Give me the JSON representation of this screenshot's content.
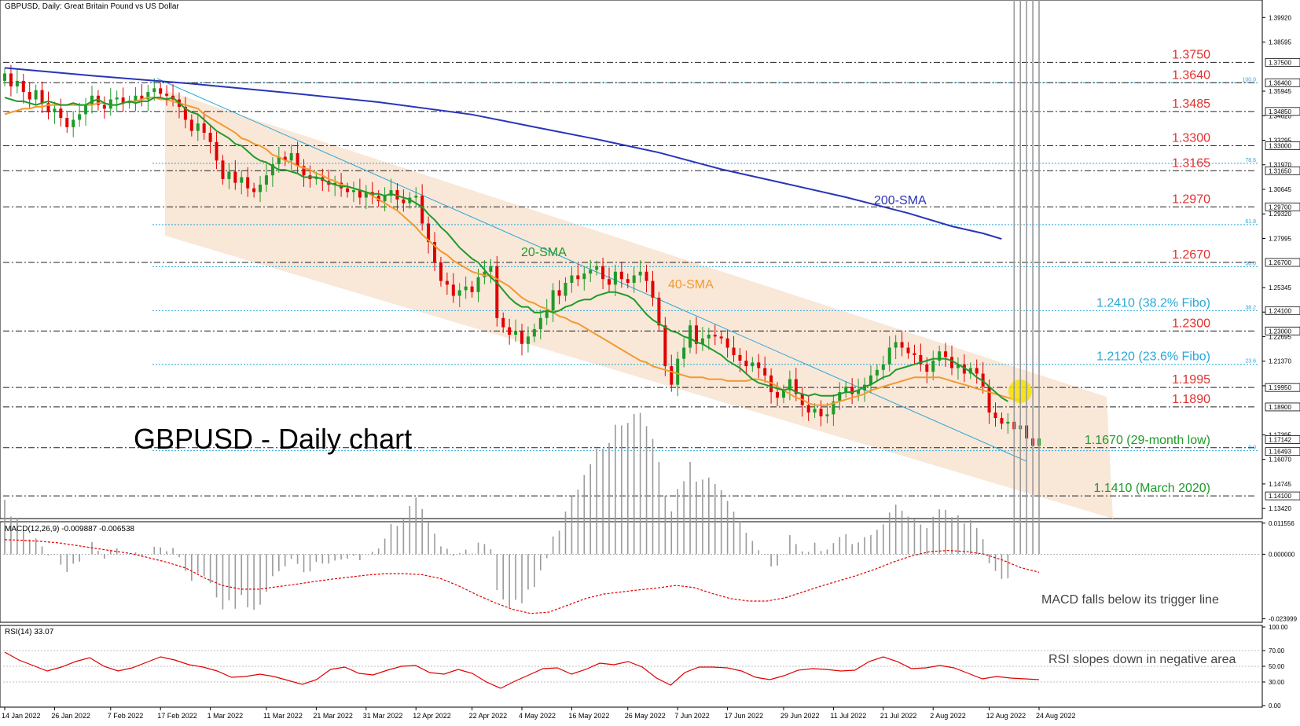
{
  "header": {
    "main_title": "GBPUSD, Daily:  Great Britain Pound vs US Dollar",
    "macd_title": "MACD(12,26,9) -0.009887 -0.006538",
    "rsi_title": "RSI(14) 33.07"
  },
  "overlay": {
    "big_title": "GBPUSD - Daily chart",
    "label_200sma": "200-SMA",
    "label_20sma": "20-SMA",
    "label_40sma": "40-SMA",
    "macd_note": "MACD falls below its trigger line",
    "rsi_note": "RSI slopes down in negative area"
  },
  "colors": {
    "bull": "#1f9a2a",
    "bear": "#e00000",
    "sma20": "#1f9a2a",
    "sma40": "#f29a2e",
    "sma200": "#2a34b8",
    "channel": "#f9e7d8",
    "fibo": "#29a8d8",
    "level_text": "#e03030",
    "rsi": "#e00000",
    "macd_signal": "#e00000",
    "highlight": "#f5e000"
  },
  "chart_data": {
    "type": "candlestick",
    "price_axis": {
      "ylim": [
        1.1296,
        1.4078
      ],
      "ticks": [
        "1.39920",
        "1.38595",
        "1.35945",
        "1.34620",
        "1.33295",
        "1.31970",
        "1.30645",
        "1.29320",
        "1.27995",
        "1.25345",
        "1.24020",
        "1.22695",
        "1.21370",
        "1.20045",
        "1.17395",
        "1.16070",
        "1.14745",
        "1.13420"
      ],
      "boxed": [
        "1.37500",
        "1.36400",
        "1.34850",
        "1.33000",
        "1.31650",
        "1.29700",
        "1.26700",
        "1.24100",
        "1.23000",
        "1.19950",
        "1.18900",
        "1.17142",
        "1.16493",
        "1.14100"
      ]
    },
    "x_labels": [
      "14 Jan 2022",
      "26 Jan 2022",
      "7 Feb 2022",
      "17 Feb 2022",
      "1 Mar 2022",
      "11 Mar 2022",
      "21 Mar 2022",
      "31 Mar 2022",
      "12 Apr 2022",
      "22 Apr 2022",
      "4 May 2022",
      "16 May 2022",
      "26 May 2022",
      "7 Jun 2022",
      "17 Jun 2022",
      "29 Jun 2022",
      "11 Jul 2022",
      "21 Jul 2022",
      "2 Aug 2022",
      "12 Aug 2022",
      "24 Aug 2022"
    ],
    "levels": [
      {
        "value": 1.375,
        "label": "1.3750",
        "type": "resistance"
      },
      {
        "value": 1.364,
        "label": "1.3640",
        "type": "resistance"
      },
      {
        "value": 1.3485,
        "label": "1.3485",
        "type": "resistance"
      },
      {
        "value": 1.33,
        "label": "1.3300",
        "type": "resistance"
      },
      {
        "value": 1.3165,
        "label": "1.3165",
        "type": "resistance"
      },
      {
        "value": 1.297,
        "label": "1.2970",
        "type": "resistance"
      },
      {
        "value": 1.267,
        "label": "1.2670",
        "type": "resistance"
      },
      {
        "value": 1.241,
        "label": "1.2410 (38.2% Fibo)",
        "type": "fibo"
      },
      {
        "value": 1.23,
        "label": "1.2300",
        "type": "resistance"
      },
      {
        "value": 1.212,
        "label": "1.2120 (23.6% Fibo)",
        "type": "fibo"
      },
      {
        "value": 1.1995,
        "label": "1.1995",
        "type": "resistance"
      },
      {
        "value": 1.189,
        "label": "1.1890",
        "type": "resistance"
      },
      {
        "value": 1.167,
        "label": "1.1670 (29-month low)",
        "type": "support"
      },
      {
        "value": 1.141,
        "label": "1.1410 (March 2020)",
        "type": "support"
      }
    ],
    "fibo_lines": [
      {
        "value": 1.364,
        "ratio": "100.0"
      },
      {
        "value": 1.3205,
        "ratio": "78.6"
      },
      {
        "value": 1.2874,
        "ratio": "61.8"
      },
      {
        "value": 1.2647,
        "ratio": "50.0"
      },
      {
        "value": 1.241,
        "ratio": "38.2"
      },
      {
        "value": 1.212,
        "ratio": "23.6"
      },
      {
        "value": 1.1654,
        "ratio": "0.0"
      }
    ],
    "closes": [
      1.369,
      1.362,
      1.365,
      1.359,
      1.355,
      1.36,
      1.353,
      1.348,
      1.35,
      1.345,
      1.34,
      1.344,
      1.347,
      1.352,
      1.357,
      1.352,
      1.35,
      1.355,
      1.356,
      1.353,
      1.354,
      1.357,
      1.355,
      1.359,
      1.361,
      1.358,
      1.357,
      1.355,
      1.351,
      1.344,
      1.338,
      1.342,
      1.337,
      1.332,
      1.322,
      1.312,
      1.316,
      1.31,
      1.313,
      1.307,
      1.305,
      1.309,
      1.314,
      1.32,
      1.324,
      1.322,
      1.326,
      1.319,
      1.314,
      1.312,
      1.313,
      1.311,
      1.309,
      1.31,
      1.307,
      1.305,
      1.306,
      1.302,
      1.305,
      1.303,
      1.3,
      1.303,
      1.306,
      1.301,
      1.299,
      1.302,
      1.303,
      1.288,
      1.278,
      1.267,
      1.257,
      1.255,
      1.249,
      1.252,
      1.254,
      1.251,
      1.259,
      1.262,
      1.265,
      1.237,
      1.232,
      1.228,
      1.23,
      1.223,
      1.227,
      1.231,
      1.237,
      1.241,
      1.252,
      1.249,
      1.256,
      1.26,
      1.258,
      1.261,
      1.263,
      1.265,
      1.258,
      1.255,
      1.262,
      1.258,
      1.256,
      1.26,
      1.262,
      1.257,
      1.248,
      1.233,
      1.211,
      1.201,
      1.215,
      1.221,
      1.233,
      1.223,
      1.226,
      1.228,
      1.227,
      1.226,
      1.221,
      1.217,
      1.214,
      1.211,
      1.213,
      1.21,
      1.206,
      1.197,
      1.194,
      1.198,
      1.204,
      1.196,
      1.19,
      1.186,
      1.188,
      1.184,
      1.185,
      1.192,
      1.197,
      1.2,
      1.196,
      1.198,
      1.201,
      1.206,
      1.209,
      1.212,
      1.221,
      1.224,
      1.221,
      1.218,
      1.217,
      1.212,
      1.208,
      1.214,
      1.219,
      1.216,
      1.21,
      1.212,
      1.207,
      1.21,
      1.207,
      1.2,
      1.186,
      1.183,
      1.18,
      1.181,
      1.177,
      1.179,
      1.172,
      1.168,
      1.172
    ],
    "sma20": [
      1.356,
      1.355,
      1.354,
      1.354,
      1.353,
      1.352,
      1.353,
      1.354,
      1.353,
      1.352,
      1.352,
      1.353,
      1.352,
      1.352,
      1.354,
      1.355,
      1.353,
      1.352,
      1.352,
      1.353,
      1.354,
      1.353,
      1.354,
      1.354,
      1.356,
      1.356,
      1.355,
      1.356,
      1.353,
      1.35,
      1.348,
      1.347,
      1.344,
      1.341,
      1.338,
      1.336,
      1.334,
      1.331,
      1.33,
      1.327,
      1.324,
      1.322,
      1.321,
      1.319,
      1.317,
      1.317,
      1.316,
      1.315,
      1.313,
      1.313,
      1.313,
      1.312,
      1.31,
      1.309,
      1.308,
      1.308,
      1.307,
      1.306,
      1.305,
      1.304,
      1.304,
      1.303,
      1.304,
      1.303,
      1.302,
      1.301,
      1.299,
      1.297,
      1.293,
      1.29,
      1.286,
      1.283,
      1.279,
      1.275,
      1.272,
      1.269,
      1.267,
      1.263,
      1.259,
      1.256,
      1.252,
      1.248,
      1.245,
      1.243,
      1.243,
      1.24,
      1.24,
      1.241,
      1.24,
      1.241,
      1.243,
      1.244,
      1.246,
      1.247,
      1.247,
      1.249,
      1.25,
      1.251,
      1.251,
      1.25,
      1.249,
      1.247,
      1.243,
      1.239,
      1.236,
      1.234,
      1.232,
      1.23,
      1.229,
      1.227,
      1.226,
      1.224,
      1.223,
      1.221,
      1.219,
      1.217,
      1.214,
      1.212,
      1.21,
      1.207,
      1.204,
      1.202,
      1.201,
      1.2,
      1.199,
      1.198,
      1.199,
      1.197,
      1.196,
      1.195,
      1.196,
      1.195,
      1.195,
      1.195,
      1.196,
      1.197,
      1.197,
      1.198,
      1.2,
      1.201,
      1.203,
      1.205,
      1.206,
      1.209,
      1.21,
      1.211,
      1.212,
      1.213,
      1.214,
      1.215,
      1.215,
      1.215,
      1.214,
      1.212,
      1.21,
      1.208,
      1.205,
      1.203,
      1.2,
      1.197,
      1.194,
      1.192
    ],
    "sma40": [
      1.347,
      1.348,
      1.349,
      1.35,
      1.35,
      1.351,
      1.351,
      1.352,
      1.352,
      1.352,
      1.352,
      1.352,
      1.352,
      1.352,
      1.352,
      1.353,
      1.353,
      1.352,
      1.352,
      1.353,
      1.354,
      1.354,
      1.355,
      1.356,
      1.356,
      1.355,
      1.355,
      1.354,
      1.353,
      1.352,
      1.351,
      1.35,
      1.347,
      1.345,
      1.343,
      1.341,
      1.339,
      1.337,
      1.334,
      1.333,
      1.331,
      1.33,
      1.328,
      1.325,
      1.324,
      1.322,
      1.321,
      1.319,
      1.318,
      1.317,
      1.315,
      1.314,
      1.312,
      1.311,
      1.309,
      1.308,
      1.307,
      1.306,
      1.305,
      1.303,
      1.301,
      1.299,
      1.297,
      1.295,
      1.292,
      1.289,
      1.286,
      1.282,
      1.279,
      1.276,
      1.273,
      1.271,
      1.268,
      1.266,
      1.264,
      1.262,
      1.261,
      1.26,
      1.26,
      1.258,
      1.256,
      1.254,
      1.251,
      1.248,
      1.246,
      1.245,
      1.243,
      1.242,
      1.24,
      1.238,
      1.237,
      1.235,
      1.234,
      1.232,
      1.23,
      1.228,
      1.226,
      1.224,
      1.222,
      1.22,
      1.218,
      1.216,
      1.214,
      1.213,
      1.211,
      1.21,
      1.209,
      1.208,
      1.207,
      1.206,
      1.205,
      1.205,
      1.205,
      1.204,
      1.204,
      1.204,
      1.203,
      1.203,
      1.203,
      1.203,
      1.204,
      1.204,
      1.203,
      1.202,
      1.2,
      1.198,
      1.196,
      1.194,
      1.193,
      1.191,
      1.19,
      1.19,
      1.19,
      1.191,
      1.192,
      1.193,
      1.194,
      1.195,
      1.196,
      1.198,
      1.199,
      1.2,
      1.201,
      1.202,
      1.203,
      1.204,
      1.205,
      1.205,
      1.205,
      1.205,
      1.205,
      1.204,
      1.203,
      1.202,
      1.201,
      1.2,
      1.199,
      1.198,
      1.197,
      1.196,
      1.195,
      1.194,
      1.193,
      1.193
    ],
    "sma200": [
      1.372,
      1.3675,
      1.3635,
      1.3587,
      1.3535,
      1.3468,
      1.3401,
      1.3335,
      1.3263,
      1.3173,
      1.3098,
      1.3022,
      1.2936,
      1.2865,
      1.2827,
      1.2797
    ],
    "sma200_index": [
      0,
      15,
      30,
      45,
      60,
      75,
      85,
      95,
      105,
      115,
      125,
      135,
      145,
      152,
      157,
      160
    ],
    "macd": {
      "ylim": [
        -0.0247,
        0.0115
      ],
      "ticks": [
        "0.011556",
        "0.000000",
        "-0.023999"
      ],
      "signal": [
        0.0054,
        0.0052,
        0.0048,
        0.0042,
        0.0032,
        0.0022,
        0.0012,
        0.0002,
        -0.0014,
        -0.0031,
        -0.0052,
        -0.0088,
        -0.0116,
        -0.013,
        -0.013,
        -0.0121,
        -0.0112,
        -0.0102,
        -0.0093,
        -0.0085,
        -0.0077,
        -0.0072,
        -0.0072,
        -0.0076,
        -0.009,
        -0.0117,
        -0.015,
        -0.018,
        -0.0205,
        -0.022,
        -0.0215,
        -0.019,
        -0.0165,
        -0.0148,
        -0.014,
        -0.0132,
        -0.0125,
        -0.0116,
        -0.0124,
        -0.0146,
        -0.0165,
        -0.0174,
        -0.0174,
        -0.0162,
        -0.014,
        -0.0118,
        -0.0098,
        -0.0078,
        -0.0055,
        -0.0028,
        -0.0006,
        0.001,
        0.0014,
        0.001,
        0.0,
        -0.0022,
        -0.005,
        -0.0067
      ]
    },
    "rsi": {
      "ylim": [
        0,
        100
      ],
      "ticks": [
        "100.00",
        "70.00",
        "50.00",
        "30.00",
        "0.00"
      ],
      "values": [
        68,
        58,
        51,
        44,
        49,
        56,
        61,
        50,
        44,
        48,
        55,
        62,
        58,
        52,
        49,
        44,
        36,
        37,
        40,
        37,
        32,
        27,
        33,
        46,
        49,
        41,
        39,
        45,
        50,
        51,
        42,
        40,
        46,
        41,
        30,
        22,
        31,
        39,
        47,
        48,
        40,
        46,
        54,
        52,
        56,
        49,
        35,
        26,
        42,
        49,
        49,
        48,
        44,
        36,
        33,
        38,
        45,
        47,
        46,
        44,
        45,
        56,
        62,
        56,
        47,
        48,
        51,
        48,
        41,
        34,
        37,
        35,
        34,
        33
      ]
    }
  }
}
